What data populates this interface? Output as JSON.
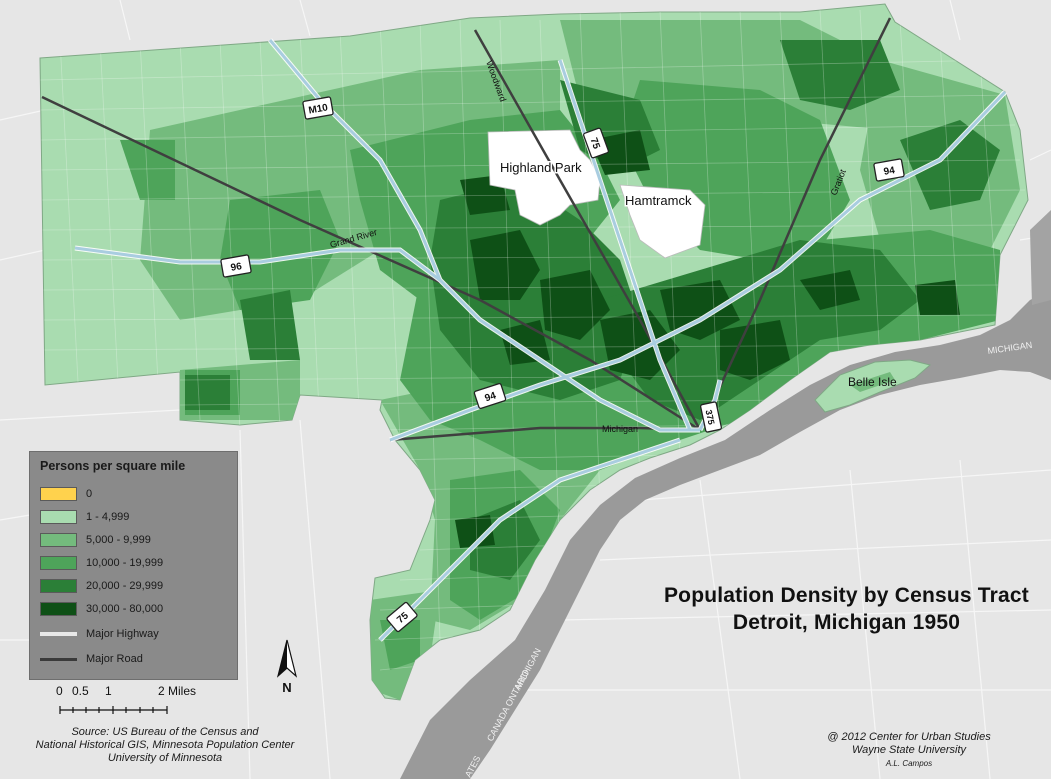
{
  "map": {
    "title_line1": "Population Density by Census Tract",
    "title_line2": "Detroit, Michigan 1950",
    "labels": {
      "highland_park": "Highland Park",
      "hamtramck": "Hamtramck",
      "belle_isle": "Belle Isle",
      "woodward": "Woodward",
      "grand_river": "Grand River",
      "gratiot": "Gratiot",
      "michigan": "Michigan",
      "michigan_water": "MICHIGAN",
      "canada_ontario": "CANADA ONTARIO",
      "michigan_river_left": "MICHIGAN",
      "states": "ATES",
      "north_letter": "N"
    },
    "shields": {
      "m10": "M10",
      "i75_north": "75",
      "i94_east": "94",
      "i96": "96",
      "i94_center": "94",
      "i375": "375",
      "i75_south": "75"
    },
    "colors": {
      "background": "#e6e6e6",
      "water": "#9a9a9a",
      "highway": "#a9cde0",
      "major_road": "#4a4a4a",
      "class_0": "#ffd24d",
      "class_1": "#a9dcb0",
      "class_2": "#74bb7d",
      "class_3": "#4ea45a",
      "class_4": "#2b7f37",
      "class_5": "#0e5016"
    }
  },
  "legend": {
    "title": "Persons per square mile",
    "items": [
      {
        "label": "0",
        "color": "#ffd24d"
      },
      {
        "label": "1 - 4,999",
        "color": "#a9dcb0"
      },
      {
        "label": "5,000 - 9,999",
        "color": "#74bb7d"
      },
      {
        "label": "10,000 - 19,999",
        "color": "#4ea45a"
      },
      {
        "label": "20,000 - 29,999",
        "color": "#2b7f37"
      },
      {
        "label": "30,000 - 80,000",
        "color": "#0e5016"
      }
    ],
    "lines": [
      {
        "label": "Major Highway",
        "color": "#e8e8e8"
      },
      {
        "label": "Major Road",
        "color": "#3a3a3a"
      }
    ]
  },
  "scale": {
    "ticks": [
      "0",
      "0.5",
      "1",
      "2 Miles"
    ]
  },
  "source": {
    "line1": "Source: US Bureau of the Census and",
    "line2": "National Historical GIS, Minnesota Population Center",
    "line3": "University of Minnesota"
  },
  "credit": {
    "line1": "@ 2012 Center for Urban Studies",
    "line2": "Wayne State University",
    "line3": "A.L. Campos"
  }
}
